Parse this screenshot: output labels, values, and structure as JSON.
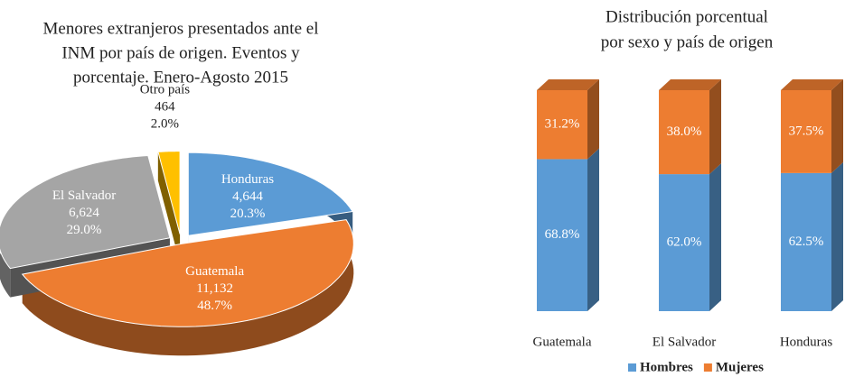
{
  "chart_data": [
    {
      "type": "pie3d",
      "title": [
        "Menores extranjeros presentados ante el",
        "INM por país de origen. Eventos y",
        "porcentaje. Enero-Agosto 2015"
      ],
      "categories": [
        "Honduras",
        "Guatemala",
        "El Salvador",
        "Otro país"
      ],
      "values": [
        4644,
        11132,
        6624,
        464
      ],
      "value_labels": [
        "4,644",
        "11,132",
        "6,624",
        "464"
      ],
      "percentages": [
        20.3,
        48.7,
        29.0,
        2.0
      ],
      "percentage_labels": [
        "20.3%",
        "48.7%",
        "29.0%",
        "2.0%"
      ],
      "colors": [
        "#5b9bd5",
        "#ed7d31",
        "#a5a5a5",
        "#ffc000"
      ]
    },
    {
      "type": "stacked3d",
      "title": [
        "Distribución porcentual",
        "por sexo y país de origen"
      ],
      "categories": [
        "Guatemala",
        "El Salvador",
        "Honduras"
      ],
      "series": [
        {
          "name": "Hombres",
          "color": "#5b9bd5",
          "values": [
            68.8,
            62.0,
            62.5
          ],
          "value_labels": [
            "68.8%",
            "62.0%",
            "62.5%"
          ]
        },
        {
          "name": "Mujeres",
          "color": "#ed7d31",
          "values": [
            31.2,
            38.0,
            37.5
          ],
          "value_labels": [
            "31.2%",
            "38.0%",
            "37.5%"
          ]
        }
      ],
      "legend": "bottom"
    }
  ]
}
